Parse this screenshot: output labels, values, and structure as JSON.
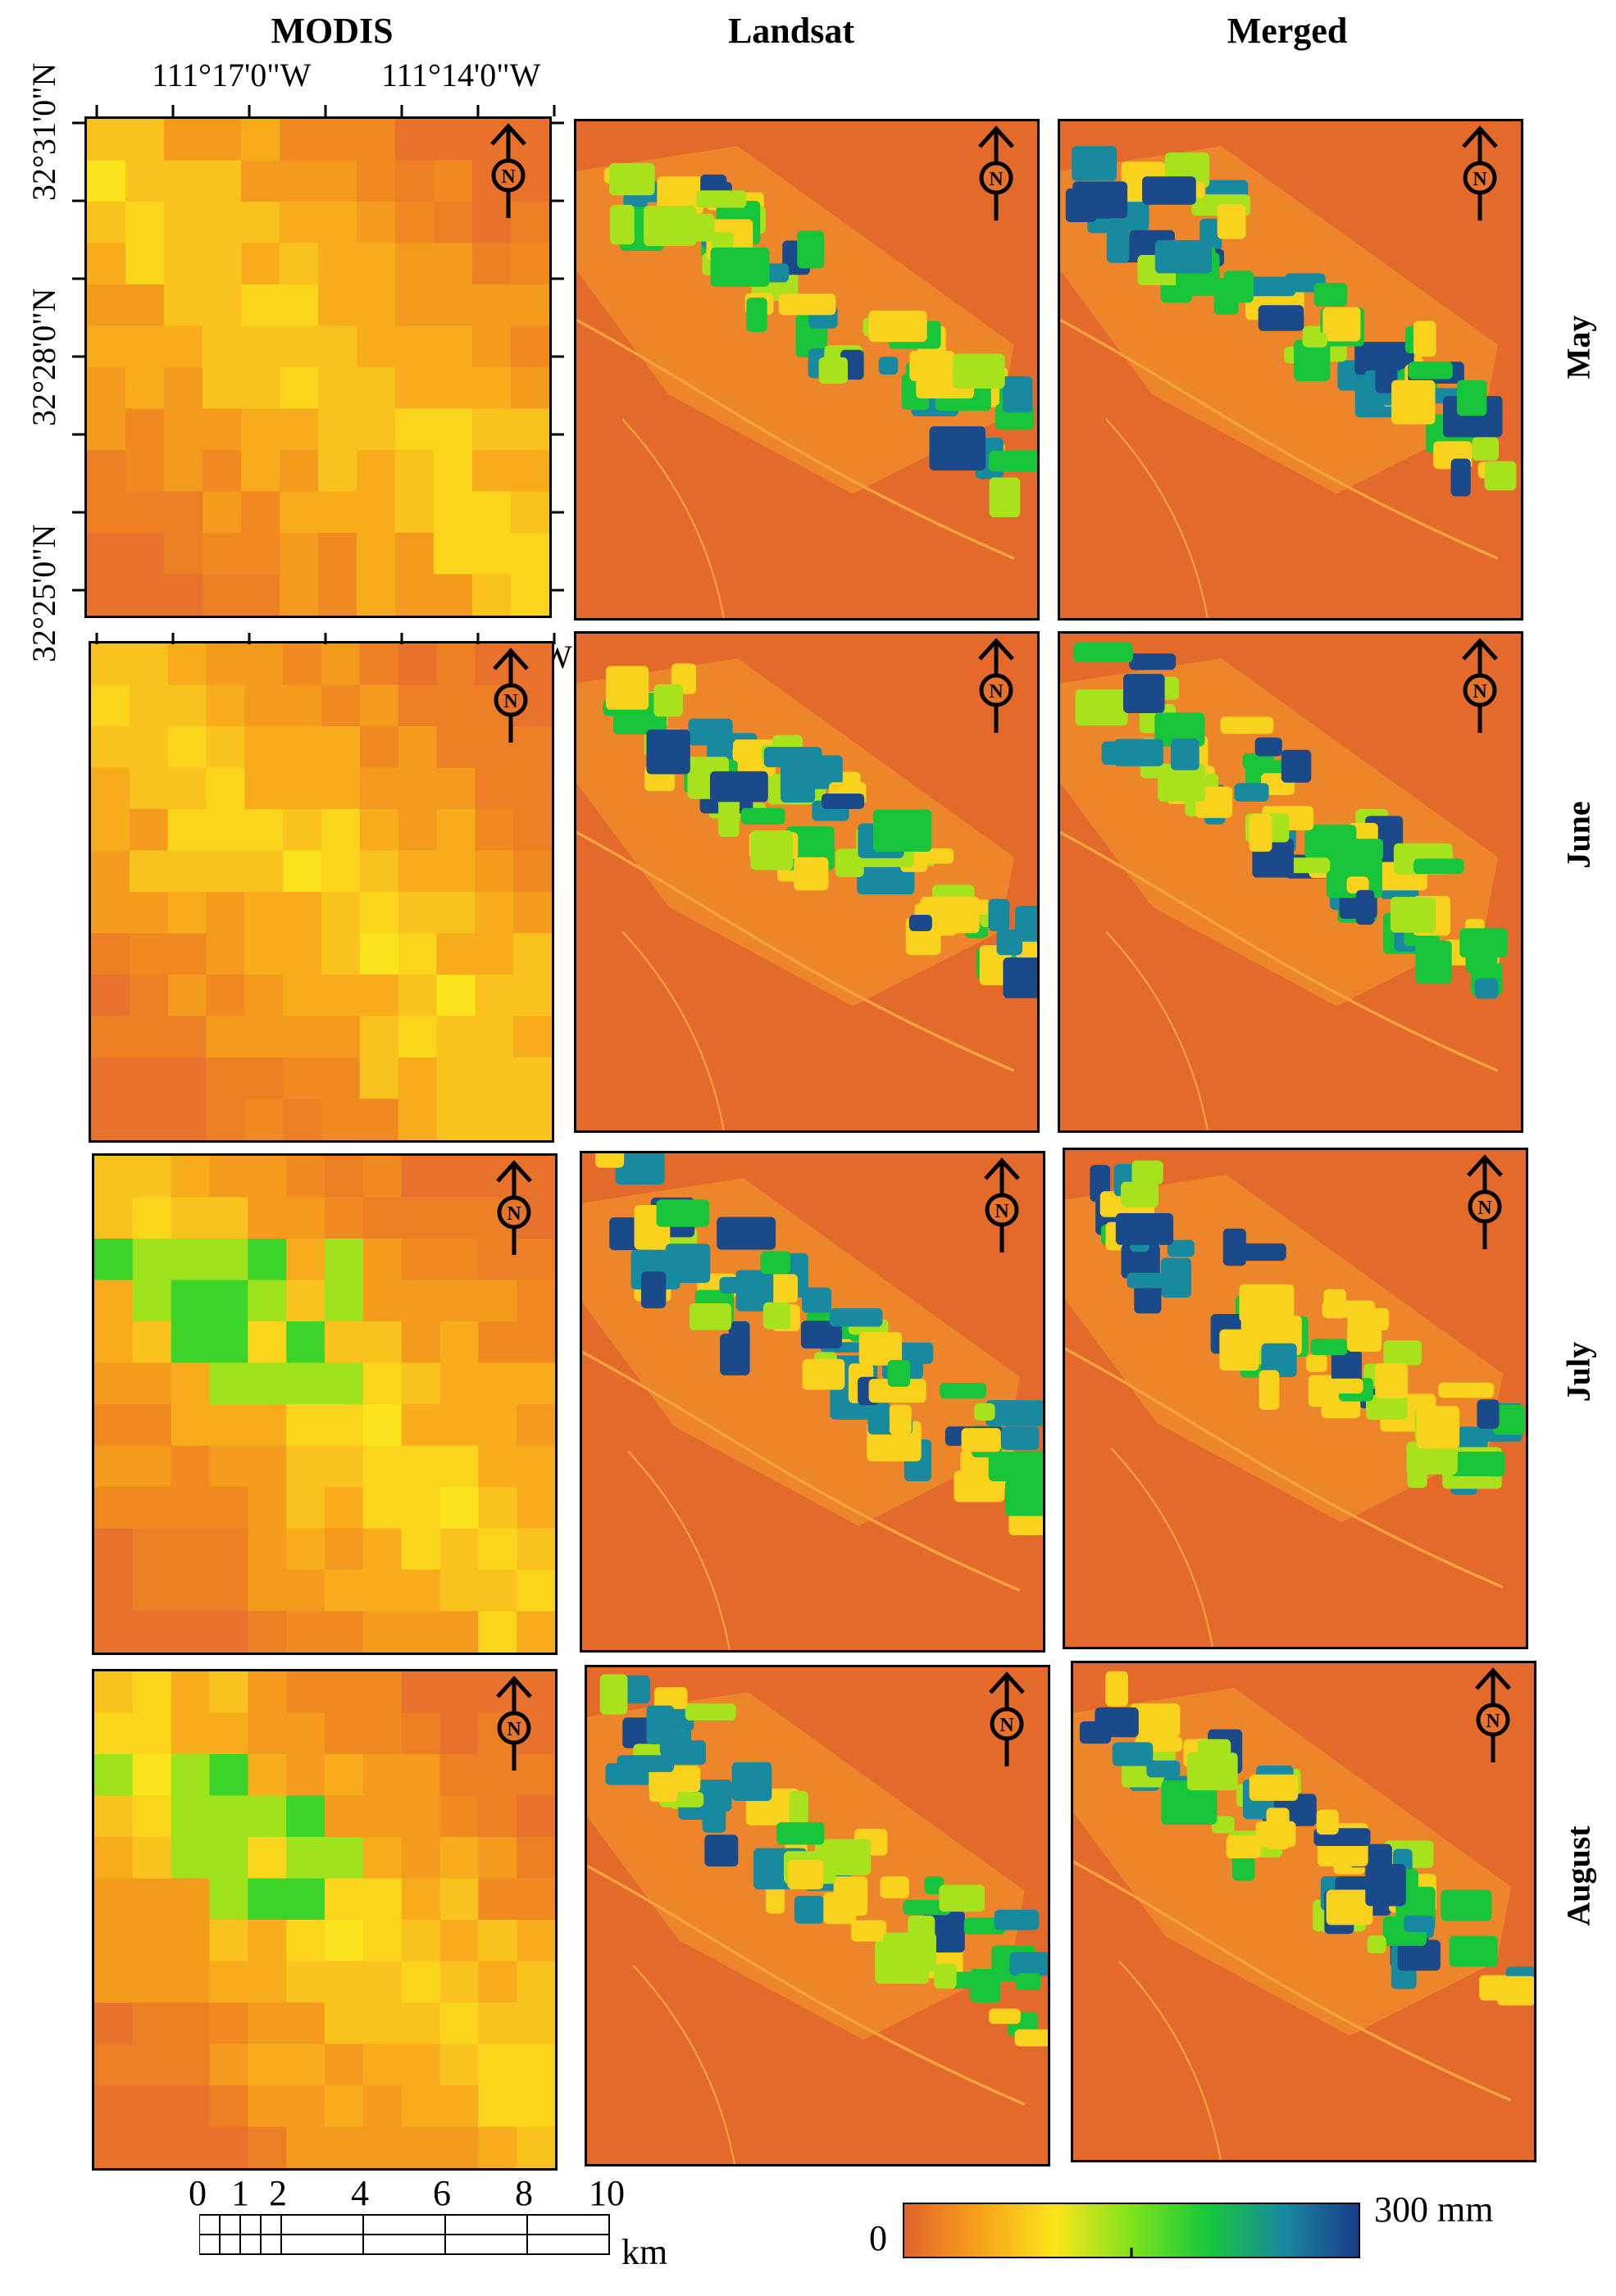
{
  "columns": [
    "MODIS",
    "Landsat",
    "Merged"
  ],
  "rows": [
    "May",
    "June",
    "July",
    "August"
  ],
  "north_label": "N",
  "coords": {
    "top": [
      "111°17'0\"W",
      "111°14'0\"W"
    ],
    "left": [
      "32°31'0\"N",
      "32°28'0\"N",
      "32°25'0\"N"
    ],
    "stray": "W"
  },
  "scale_bar": {
    "ticks": [
      "0",
      "1",
      "2",
      "4",
      "6",
      "8",
      "10"
    ],
    "unit": "km"
  },
  "legend": {
    "min_label": "0",
    "max_label": "300 mm",
    "colors": [
      "#e2622a",
      "#f7a21a",
      "#fbe41a",
      "#7ee21c",
      "#16c83a",
      "#1a8aa0",
      "#1a3a8a"
    ]
  }
}
